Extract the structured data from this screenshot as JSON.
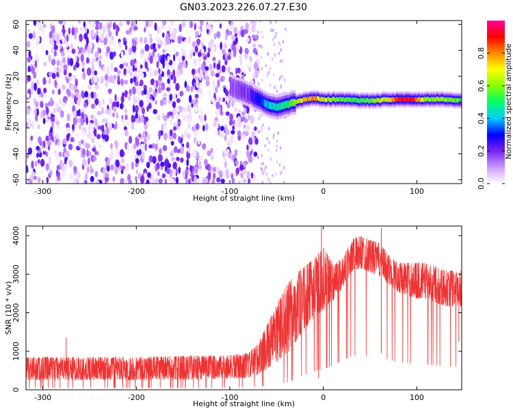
{
  "title": "GN03.2023.226.07.27.E30",
  "chart_data": [
    {
      "type": "heatmap",
      "xlabel": "Height of straight line (km)",
      "ylabel": "Frequency (Hz)",
      "xlim": [
        -318,
        148
      ],
      "ylim": [
        -63,
        63
      ],
      "x_ticks": [
        "-300",
        "-200",
        "-100",
        "0",
        "100"
      ],
      "y_ticks": [
        "-60",
        "-40",
        "-20",
        "0",
        "20",
        "40",
        "60"
      ],
      "colorbar": {
        "label": "Normalized spectral amplitude",
        "range": [
          0.0,
          1.0
        ],
        "ticks": [
          "0.0",
          "0.2",
          "0.4",
          "0.6",
          "0.8"
        ],
        "colors": [
          "#ffffff",
          "#cc99ff",
          "#7722ee",
          "#0000ff",
          "#00ccff",
          "#00ff66",
          "#88ff00",
          "#ffff00",
          "#ff8800",
          "#ff0000",
          "#ff0099"
        ]
      },
      "noise_region_x": [
        -318,
        -70
      ],
      "sparse_region_x": [
        -70,
        -40
      ],
      "signal_band": [
        {
          "x": -100,
          "freq": 12,
          "amp": 0.15
        },
        {
          "x": -80,
          "freq": 6,
          "amp": 0.2
        },
        {
          "x": -70,
          "freq": 2,
          "amp": 0.3
        },
        {
          "x": -60,
          "freq": -2,
          "amp": 0.4
        },
        {
          "x": -50,
          "freq": -4,
          "amp": 0.45
        },
        {
          "x": -40,
          "freq": -2,
          "amp": 0.5
        },
        {
          "x": -30,
          "freq": 0,
          "amp": 0.6
        },
        {
          "x": -20,
          "freq": 2,
          "amp": 0.75
        },
        {
          "x": -10,
          "freq": 3,
          "amp": 0.8
        },
        {
          "x": 0,
          "freq": 2,
          "amp": 0.65
        },
        {
          "x": 20,
          "freq": 2,
          "amp": 0.55
        },
        {
          "x": 50,
          "freq": 1,
          "amp": 0.55
        },
        {
          "x": 70,
          "freq": 2,
          "amp": 0.7
        },
        {
          "x": 80,
          "freq": 2,
          "amp": 0.9
        },
        {
          "x": 95,
          "freq": 2,
          "amp": 0.9
        },
        {
          "x": 110,
          "freq": 2,
          "amp": 0.6
        },
        {
          "x": 130,
          "freq": 2,
          "amp": 0.6
        },
        {
          "x": 148,
          "freq": 1,
          "amp": 0.55
        }
      ]
    },
    {
      "type": "line",
      "xlabel": "Height of straight line (km)",
      "ylabel": "SNR (10 * v/v)",
      "xlim": [
        -318,
        148
      ],
      "ylim": [
        0,
        4250
      ],
      "x_ticks": [
        "-300",
        "-200",
        "-100",
        "0",
        "100"
      ],
      "y_ticks": [
        "0",
        "1000",
        "2000",
        "3000",
        "4000"
      ],
      "color": "#ee3333",
      "envelope": {
        "x": [
          -318,
          -250,
          -200,
          -150,
          -100,
          -80,
          -70,
          -60,
          -50,
          -40,
          -30,
          -20,
          -10,
          0,
          10,
          20,
          30,
          40,
          50,
          60,
          70,
          80,
          90,
          100,
          110,
          120,
          130,
          140,
          148
        ],
        "low": [
          150,
          150,
          150,
          150,
          180,
          200,
          250,
          350,
          450,
          600,
          900,
          1300,
          1600,
          1800,
          2100,
          2500,
          2900,
          3000,
          2900,
          2800,
          2600,
          2400,
          2300,
          2200,
          2200,
          2100,
          2000,
          2000,
          2000
        ],
        "high": [
          850,
          850,
          850,
          880,
          900,
          950,
          1200,
          1700,
          2200,
          2700,
          3000,
          3200,
          3400,
          3700,
          3300,
          3400,
          3900,
          4000,
          3900,
          3800,
          3500,
          3300,
          3300,
          3300,
          3300,
          3200,
          3100,
          3100,
          3100
        ]
      },
      "spikes": [
        {
          "x": -275,
          "y": 1350
        },
        {
          "x": -2,
          "y": 4250
        },
        {
          "x": -5,
          "y": 300
        },
        {
          "x": 62,
          "y": 4200
        },
        {
          "x": 62,
          "y": 950
        },
        {
          "x": 145,
          "y": 1250
        }
      ]
    }
  ]
}
